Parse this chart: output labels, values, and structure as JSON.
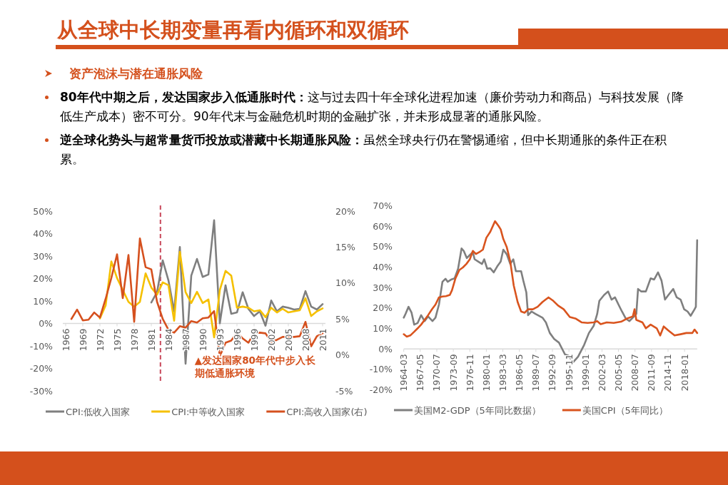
{
  "chart_data": [
    {
      "type": "other",
      "title": "从全球中长期变量再看内循环和双循环",
      "subtitle": "资产泡沫与潜在通胀风险",
      "annotations": [
        "80年代中期之后，发达国家步入低通胀时代：这与过去四十年全球化进程加速（廉价劳动力和商品）与科技发展（降低生产成本）密不可分。90年代末与金融危机时期的金融扩张，并未形成显著的通胀风险。",
        "逆全球化势头与超常量货币投放或潜藏中长期通胀风险：虽然全球央行仍在警惕通缩，但中长期通胀的条件正在积累。"
      ]
    },
    {
      "type": "line",
      "xlim": [
        1965.5,
        2011.5
      ],
      "xticks": [
        1966,
        1969,
        1972,
        1975,
        1978,
        1981,
        1984,
        1987,
        1990,
        1993,
        1996,
        1999,
        2002,
        2005,
        2008,
        2011
      ],
      "ylim": [
        -30,
        50
      ],
      "yticks": [
        {
          "value": -30,
          "label": "-30%"
        },
        {
          "value": -20,
          "label": "-20%"
        },
        {
          "value": -10,
          "label": "-10%"
        },
        {
          "value": 0,
          "label": "0%"
        },
        {
          "value": 10,
          "label": "10%"
        },
        {
          "value": 20,
          "label": "20%"
        },
        {
          "value": 30,
          "label": "30%"
        },
        {
          "value": 40,
          "label": "40%"
        },
        {
          "value": 50,
          "label": "50%"
        }
      ],
      "y2lim": [
        -5,
        20
      ],
      "y2ticks": [
        {
          "value": -5,
          "label": "-5%"
        },
        {
          "value": 0,
          "label": "0%"
        },
        {
          "value": 5,
          "label": "5%"
        },
        {
          "value": 10,
          "label": "10%"
        },
        {
          "value": 15,
          "label": "15%"
        },
        {
          "value": 20,
          "label": "20%"
        }
      ],
      "legend": "bottom",
      "ref_lines": [
        {
          "axis": "x",
          "value": 1982.6,
          "color": "#c8485a",
          "line_style": "dashed"
        }
      ],
      "annotations": [
        "▲发达国家80年代中步入长期低通胀环境"
      ],
      "series": [
        {
          "name": "CPI:低收入国家",
          "color": "#7f7f7f",
          "x": [
            1981,
            1982,
            1983,
            1984,
            1985,
            1986,
            1987,
            1988,
            1989,
            1990,
            1991,
            1992,
            1993,
            1994,
            1995,
            1996,
            1997,
            1998,
            1999,
            2000,
            2001,
            2002,
            2003,
            2004,
            2005,
            2006,
            2007,
            2008,
            2009,
            2010,
            2011
          ],
          "values": [
            9.3,
            13.9,
            28.1,
            19.2,
            5.4,
            34.0,
            -17.9,
            21.3,
            28.7,
            20.7,
            21.8,
            45.9,
            0.1,
            17.0,
            4.3,
            4.9,
            13.9,
            6.5,
            3.3,
            5.4,
            -1.0,
            10.2,
            5.4,
            7.5,
            7.0,
            6.2,
            6.5,
            14.4,
            7.5,
            6.2,
            8.6
          ]
        },
        {
          "name": "CPI:中等收入国家",
          "color": "#f5c000",
          "x": [
            1972,
            1973,
            1974,
            1975,
            1976,
            1977,
            1978,
            1979,
            1980,
            1981,
            1982,
            1983,
            1984,
            1985,
            1986,
            1987,
            1988,
            1989,
            1990,
            1991,
            1992,
            1993,
            1994,
            1995,
            1996,
            1997,
            1998,
            1999,
            2000,
            2001,
            2002,
            2003,
            2004,
            2005,
            2006,
            2007,
            2008,
            2009,
            2010,
            2011
          ],
          "values": [
            2.2,
            8.0,
            27.6,
            20.2,
            14.9,
            9.6,
            7.5,
            9.6,
            22.3,
            16.0,
            12.8,
            18.3,
            17.0,
            1.2,
            31.9,
            13.9,
            9.1,
            14.1,
            9.1,
            10.7,
            -6.2,
            14.9,
            23.4,
            21.3,
            7.0,
            7.5,
            7.0,
            5.4,
            5.9,
            2.8,
            7.0,
            4.9,
            6.5,
            4.9,
            5.4,
            5.9,
            11.2,
            3.3,
            5.4,
            6.7
          ]
        },
        {
          "name": "CPI:高收入国家(右)",
          "color": "#d5501e",
          "axis": "y2",
          "x": [
            1967,
            1968,
            1969,
            1970,
            1971,
            1972,
            1973,
            1974,
            1975,
            1976,
            1977,
            1978,
            1979,
            1980,
            1981,
            1982,
            1983,
            1984,
            1985,
            1986,
            1987,
            1988,
            1989,
            1990,
            1991,
            1992,
            1993,
            1994,
            1995,
            1996,
            1997,
            1998,
            1999,
            2000,
            2001,
            2002,
            2003,
            2004,
            2005,
            2006,
            2007,
            2008,
            2009,
            2010,
            2011
          ],
          "values": [
            5.0,
            6.3,
            4.8,
            4.9,
            5.9,
            5.2,
            7.8,
            10.7,
            14.0,
            7.9,
            13.9,
            4.6,
            16.2,
            12.2,
            11.9,
            7.4,
            5.0,
            3.5,
            3.1,
            4.0,
            3.8,
            4.7,
            4.5,
            5.1,
            5.2,
            6.1,
            -0.2,
            1.7,
            2.0,
            3.1,
            2.3,
            1.7,
            3.0,
            3.1,
            3.0,
            1.8,
            2.1,
            2.5,
            2.5,
            2.5,
            2.6,
            4.6,
            1.2,
            2.6,
            3.0
          ]
        }
      ]
    },
    {
      "type": "line",
      "xlim": [
        "1964-03",
        "2020-06"
      ],
      "xticks": [
        "1964-03",
        "1967-05",
        "1970-07",
        "1973-09",
        "1976-11",
        "1980-01",
        "1983-03",
        "1986-05",
        "1989-07",
        "1992-09",
        "1995-11",
        "1999-01",
        "2002-03",
        "2005-05",
        "2008-07",
        "2011-09",
        "2014-11",
        "2018-01"
      ],
      "ylim": [
        -20,
        70
      ],
      "yticks": [
        {
          "value": -20,
          "label": "-20%"
        },
        {
          "value": -10,
          "label": "-10%"
        },
        {
          "value": 0,
          "label": "0%"
        },
        {
          "value": 10,
          "label": "10%"
        },
        {
          "value": 20,
          "label": "20%"
        },
        {
          "value": 30,
          "label": "30%"
        },
        {
          "value": 40,
          "label": "40%"
        },
        {
          "value": 50,
          "label": "50%"
        },
        {
          "value": 60,
          "label": "60%"
        },
        {
          "value": 70,
          "label": "70%"
        }
      ],
      "legend": "bottom",
      "series": [
        {
          "name": "美国M2-GDP（5年同比数据）",
          "color": "#7f7f7f",
          "x": [
            "1964-03",
            "1964-07",
            "1965-02",
            "1965-09",
            "1966-03",
            "1966-11",
            "1967-07",
            "1968-03",
            "1968-11",
            "1969-09",
            "1970-04",
            "1970-12",
            "1971-08",
            "1972-03",
            "1972-08",
            "1973-05",
            "1973-12",
            "1974-08",
            "1975-04",
            "1975-09",
            "1976-04",
            "1976-11",
            "1977-06",
            "1977-10",
            "1978-06",
            "1979-03",
            "1979-08",
            "1980-03",
            "1980-10",
            "1981-06",
            "1982-02",
            "1982-10",
            "1983-04",
            "1983-12",
            "1984-08",
            "1985-03",
            "1985-09",
            "1986-09",
            "1987-02",
            "1987-09",
            "1988-01",
            "1988-09",
            "1989-06",
            "1990-10",
            "1991-06",
            "1992-03",
            "1993-01",
            "1993-12",
            "1995-02",
            "1995-10",
            "1996-09",
            "1997-08",
            "1998-10",
            "1999-09",
            "2000-08",
            "2001-04",
            "2001-09",
            "2002-08",
            "2003-05",
            "2004-01",
            "2004-09",
            "2005-05",
            "2006-01",
            "2006-10",
            "2007-06",
            "2008-02",
            "2008-10",
            "2009-02",
            "2009-09",
            "2010-08",
            "2011-07",
            "2012-03",
            "2012-12",
            "2013-08",
            "2014-04",
            "2014-12",
            "2015-11",
            "2016-07",
            "2017-04",
            "2017-12",
            "2018-08",
            "2019-03",
            "2019-12",
            "2020-03",
            "2020-06"
          ],
          "values": [
            15.3,
            17.1,
            20.6,
            17.7,
            11.9,
            12.7,
            16.5,
            13.6,
            15.9,
            13.6,
            15.3,
            21.7,
            32.8,
            34.3,
            32.8,
            34.0,
            34.5,
            39.2,
            49.1,
            47.9,
            44.4,
            45.9,
            47.3,
            43.8,
            42.7,
            41.5,
            43.8,
            39.2,
            39.4,
            37.4,
            40.3,
            42.7,
            48.5,
            46.2,
            41.5,
            43.8,
            38.0,
            38.0,
            33.4,
            27.6,
            16.5,
            18.3,
            17.1,
            15.3,
            13.0,
            7.8,
            4.9,
            3.1,
            -2.7,
            -3.3,
            -6.4,
            -3.8,
            2.0,
            7.8,
            11.3,
            17.1,
            23.5,
            26.4,
            28.1,
            24.1,
            25.2,
            21.7,
            18.3,
            14.8,
            13.6,
            15.3,
            17.1,
            29.3,
            28.1,
            28.1,
            34.5,
            33.9,
            37.4,
            33.4,
            24.1,
            26.4,
            29.3,
            25.2,
            24.1,
            19.4,
            18.3,
            16.2,
            19.4,
            20.6,
            53.1
          ]
        },
        {
          "name": "美国CPI（5年同比）",
          "color": "#d9541e",
          "x": [
            "1964-03",
            "1964-10",
            "1965-06",
            "1966-03",
            "1966-11",
            "1967-07",
            "1968-03",
            "1968-11",
            "1969-08",
            "1970-04",
            "1970-12",
            "1971-08",
            "1972-04",
            "1973-01",
            "1973-06",
            "1974-02",
            "1974-11",
            "1975-07",
            "1976-03",
            "1976-11",
            "1977-06",
            "1978-01",
            "1978-09",
            "1979-05",
            "1980-01",
            "1980-10",
            "1981-09",
            "1982-05",
            "1982-10",
            "1983-04",
            "1983-12",
            "1984-08",
            "1985-04",
            "1986-01",
            "1986-09",
            "1987-05",
            "1988-01",
            "1988-12",
            "1989-11",
            "1990-10",
            "1991-12",
            "1992-11",
            "1993-10",
            "1994-11",
            "1996-01",
            "1997-03",
            "1998-04",
            "1999-06",
            "2000-08",
            "2001-04",
            "2001-12",
            "2003-02",
            "2004-06",
            "2005-11",
            "2006-12",
            "2008-02",
            "2008-06",
            "2008-10",
            "2009-12",
            "2010-08",
            "2011-07",
            "2012-09",
            "2013-05",
            "2014-01",
            "2014-12",
            "2016-02",
            "2017-04",
            "2018-05",
            "2019-07",
            "2019-12",
            "2020-06"
          ],
          "values": [
            7.2,
            6.0,
            6.6,
            8.4,
            10.1,
            11.9,
            14.2,
            16.5,
            19.4,
            21.7,
            25.2,
            25.6,
            25.8,
            26.4,
            28.7,
            34.5,
            38.6,
            39.8,
            41.5,
            43.8,
            47.9,
            46.4,
            47.3,
            48.5,
            54.3,
            57.2,
            62.4,
            60.1,
            58.4,
            53.7,
            49.7,
            42.7,
            31.0,
            22.9,
            18.3,
            17.7,
            19.4,
            19.4,
            20.6,
            22.9,
            25.2,
            23.5,
            21.2,
            19.4,
            15.6,
            14.8,
            13.0,
            12.7,
            13.0,
            13.6,
            12.1,
            13.0,
            12.7,
            13.3,
            14.8,
            15.9,
            19.4,
            14.2,
            13.0,
            10.1,
            11.9,
            10.1,
            6.6,
            11.0,
            9.0,
            6.6,
            7.2,
            7.8,
            7.8,
            9.5,
            7.8
          ]
        }
      ]
    }
  ]
}
